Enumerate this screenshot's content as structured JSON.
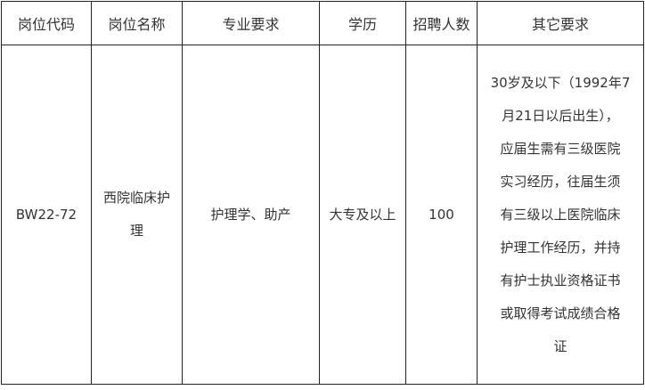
{
  "headers": [
    "岗位代码",
    "岗位名称",
    "专业要求",
    "学历",
    "招聘人数",
    "其它要求"
  ],
  "row": {
    "code": "BW22-72",
    "name_lines": [
      "西院临床护",
      "理"
    ],
    "major": "护理学、助产",
    "education": "大专及以上",
    "count": "100",
    "other_lines": [
      "30岁及以下（1992年7",
      "月21日以后出生），",
      "应届生需有三级医院",
      "实习经历，往届生须",
      "有三级以上医院临床",
      "护理工作经历，并持",
      "有护士执业资格证书",
      "或取得考试成绩合格",
      "证"
    ]
  }
}
